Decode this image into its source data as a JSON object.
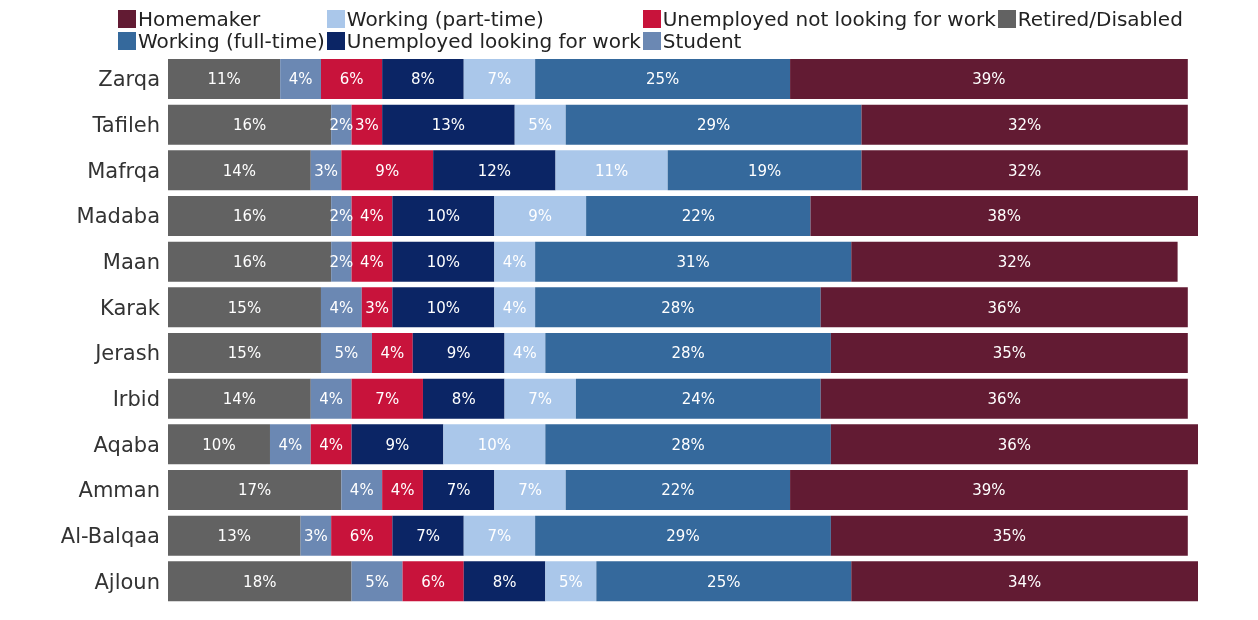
{
  "chart_data": {
    "type": "bar",
    "orientation": "horizontal",
    "stacked": true,
    "legend": "top",
    "tick_labels": "y",
    "xlim": [
      0,
      101
    ],
    "categories": [
      "Zarqa",
      "Tafileh",
      "Mafrqa",
      "Madaba",
      "Maan",
      "Karak",
      "Jerash",
      "Irbid",
      "Aqaba",
      "Amman",
      "Al-Balqaa",
      "Ajloun"
    ],
    "series": [
      {
        "name": "Retired/Disabled",
        "color": "#626262",
        "values": [
          11,
          16,
          14,
          16,
          16,
          15,
          15,
          14,
          10,
          17,
          13,
          18
        ],
        "value_labels": [
          "11%",
          "16%",
          "14%",
          "16%",
          "16%",
          "15%",
          "15%",
          "14%",
          "10%",
          "17%",
          "13%",
          "18%"
        ]
      },
      {
        "name": "Student",
        "color": "#6b88b3",
        "values": [
          4,
          2,
          3,
          2,
          2,
          4,
          5,
          4,
          4,
          4,
          3,
          5
        ],
        "value_labels": [
          "4%",
          "2%",
          "3%",
          "2%",
          "2%",
          "4%",
          "5%",
          "4%",
          "4%",
          "4%",
          "3%",
          "5%"
        ]
      },
      {
        "name": "Unemployed not looking for work",
        "color": "#c8133b",
        "values": [
          6,
          3,
          9,
          4,
          4,
          3,
          4,
          7,
          4,
          4,
          6,
          6
        ],
        "value_labels": [
          "6%",
          "3%",
          "9%",
          "4%",
          "4%",
          "3%",
          "4%",
          "7%",
          "4%",
          "4%",
          "6%",
          "6%"
        ]
      },
      {
        "name": "Unemployed looking for work",
        "color": "#0b2565",
        "values": [
          8,
          13,
          12,
          10,
          10,
          10,
          9,
          8,
          9,
          7,
          7,
          8
        ],
        "value_labels": [
          "8%",
          "13%",
          "12%",
          "10%",
          "10%",
          "10%",
          "9%",
          "8%",
          "9%",
          "7%",
          "7%",
          "8%"
        ]
      },
      {
        "name": "Working (part-time)",
        "color": "#aac7ea",
        "values": [
          7,
          5,
          11,
          9,
          4,
          4,
          4,
          7,
          10,
          7,
          7,
          5
        ],
        "value_labels": [
          "7%",
          "5%",
          "11%",
          "9%",
          "4%",
          "4%",
          "4%",
          "7%",
          "10%",
          "7%",
          "7%",
          "5%"
        ]
      },
      {
        "name": "Working (full-time)",
        "color": "#35699c",
        "values": [
          25,
          29,
          19,
          22,
          31,
          28,
          28,
          24,
          28,
          22,
          29,
          25
        ],
        "value_labels": [
          "25%",
          "29%",
          "19%",
          "22%",
          "31%",
          "28%",
          "28%",
          "24%",
          "28%",
          "22%",
          "29%",
          "25%"
        ]
      },
      {
        "name": "Homemaker",
        "color": "#621b33",
        "values": [
          39,
          32,
          32,
          38,
          32,
          36,
          35,
          36,
          36,
          39,
          35,
          34
        ],
        "value_labels": [
          "39%",
          "32%",
          "32%",
          "38%",
          "32%",
          "36%",
          "35%",
          "36%",
          "36%",
          "39%",
          "35%",
          "34%"
        ]
      }
    ]
  }
}
